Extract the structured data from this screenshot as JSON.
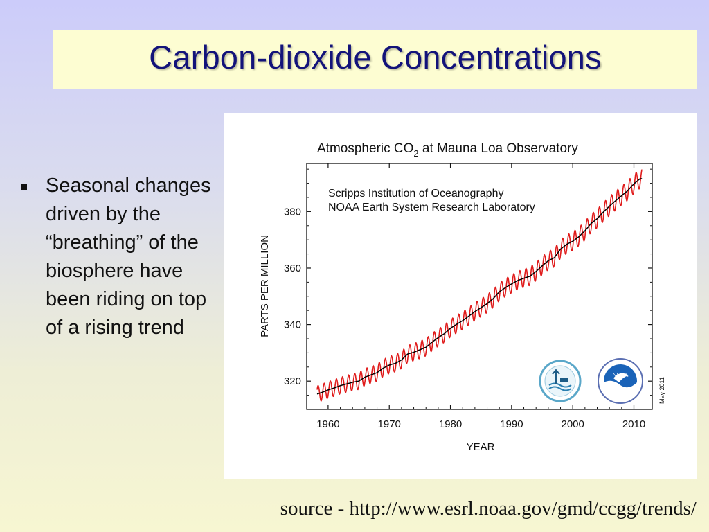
{
  "slide": {
    "title": "Carbon-dioxide Concentrations",
    "bullet": "Seasonal changes driven by the “breathing” of the biosphere have been riding on top of a rising trend",
    "source": "source - http://www.esrl.noaa.gov/gmd/ccgg/trends/",
    "colors": {
      "title": "#13137a",
      "title_box": "#fdfdd2",
      "monthly_line": "#e01b1b",
      "trend_line": "#000000"
    }
  },
  "chart_data": {
    "type": "line",
    "title_main": "Atmospheric CO",
    "title_sub": "2",
    "title_rest": " at Mauna Loa Observatory",
    "annotations": [
      "Scripps Institution of Oceanography",
      "NOAA Earth System Research Laboratory"
    ],
    "date_stamp": "May 2011",
    "xlabel": "YEAR",
    "ylabel": "PARTS PER MILLION",
    "xlim": [
      1956.5,
      2013
    ],
    "ylim": [
      310,
      397
    ],
    "x_ticks": [
      1960,
      1970,
      1980,
      1990,
      2000,
      2010
    ],
    "y_ticks": [
      320,
      340,
      360,
      380
    ],
    "grid": false,
    "logos": [
      "scripps-logo",
      "noaa-logo"
    ],
    "series": [
      {
        "role": "monthly mean (seasonal cycle)",
        "color": "#e01b1b",
        "x": [
          1958,
          1959,
          1960,
          1961,
          1962,
          1963,
          1964,
          1965,
          1966,
          1967,
          1968,
          1969,
          1970,
          1971,
          1972,
          1973,
          1974,
          1975,
          1976,
          1977,
          1978,
          1979,
          1980,
          1981,
          1982,
          1983,
          1984,
          1985,
          1986,
          1987,
          1988,
          1989,
          1990,
          1991,
          1992,
          1993,
          1994,
          1995,
          1996,
          1997,
          1998,
          1999,
          2000,
          2001,
          2002,
          2003,
          2004,
          2005,
          2006,
          2007,
          2008,
          2009,
          2010,
          2011
        ],
        "trend": [
          315.3,
          316.0,
          316.9,
          317.6,
          318.4,
          319.0,
          319.6,
          320.0,
          321.4,
          322.2,
          323.0,
          324.6,
          325.7,
          326.3,
          327.5,
          329.6,
          330.2,
          331.1,
          332.0,
          333.8,
          335.4,
          336.8,
          338.7,
          340.1,
          341.4,
          343.0,
          344.6,
          346.0,
          347.4,
          349.2,
          351.6,
          353.1,
          354.4,
          355.6,
          356.4,
          357.1,
          358.8,
          360.8,
          362.6,
          363.7,
          366.7,
          368.4,
          369.5,
          371.1,
          373.2,
          375.8,
          377.5,
          379.8,
          381.9,
          383.8,
          385.6,
          387.4,
          389.8,
          391.6
        ],
        "seasonal_amplitude": 3.2
      },
      {
        "role": "seasonally corrected trend",
        "color": "#000000",
        "x": [
          1958,
          1959,
          1960,
          1961,
          1962,
          1963,
          1964,
          1965,
          1966,
          1967,
          1968,
          1969,
          1970,
          1971,
          1972,
          1973,
          1974,
          1975,
          1976,
          1977,
          1978,
          1979,
          1980,
          1981,
          1982,
          1983,
          1984,
          1985,
          1986,
          1987,
          1988,
          1989,
          1990,
          1991,
          1992,
          1993,
          1994,
          1995,
          1996,
          1997,
          1998,
          1999,
          2000,
          2001,
          2002,
          2003,
          2004,
          2005,
          2006,
          2007,
          2008,
          2009,
          2010,
          2011
        ],
        "y": [
          315.3,
          316.0,
          316.9,
          317.6,
          318.4,
          319.0,
          319.6,
          320.0,
          321.4,
          322.2,
          323.0,
          324.6,
          325.7,
          326.3,
          327.5,
          329.6,
          330.2,
          331.1,
          332.0,
          333.8,
          335.4,
          336.8,
          338.7,
          340.1,
          341.4,
          343.0,
          344.6,
          346.0,
          347.4,
          349.2,
          351.6,
          353.1,
          354.4,
          355.6,
          356.4,
          357.1,
          358.8,
          360.8,
          362.6,
          363.7,
          366.7,
          368.4,
          369.5,
          371.1,
          373.2,
          375.8,
          377.5,
          379.8,
          381.9,
          383.8,
          385.6,
          387.4,
          389.8,
          391.6
        ]
      }
    ]
  }
}
